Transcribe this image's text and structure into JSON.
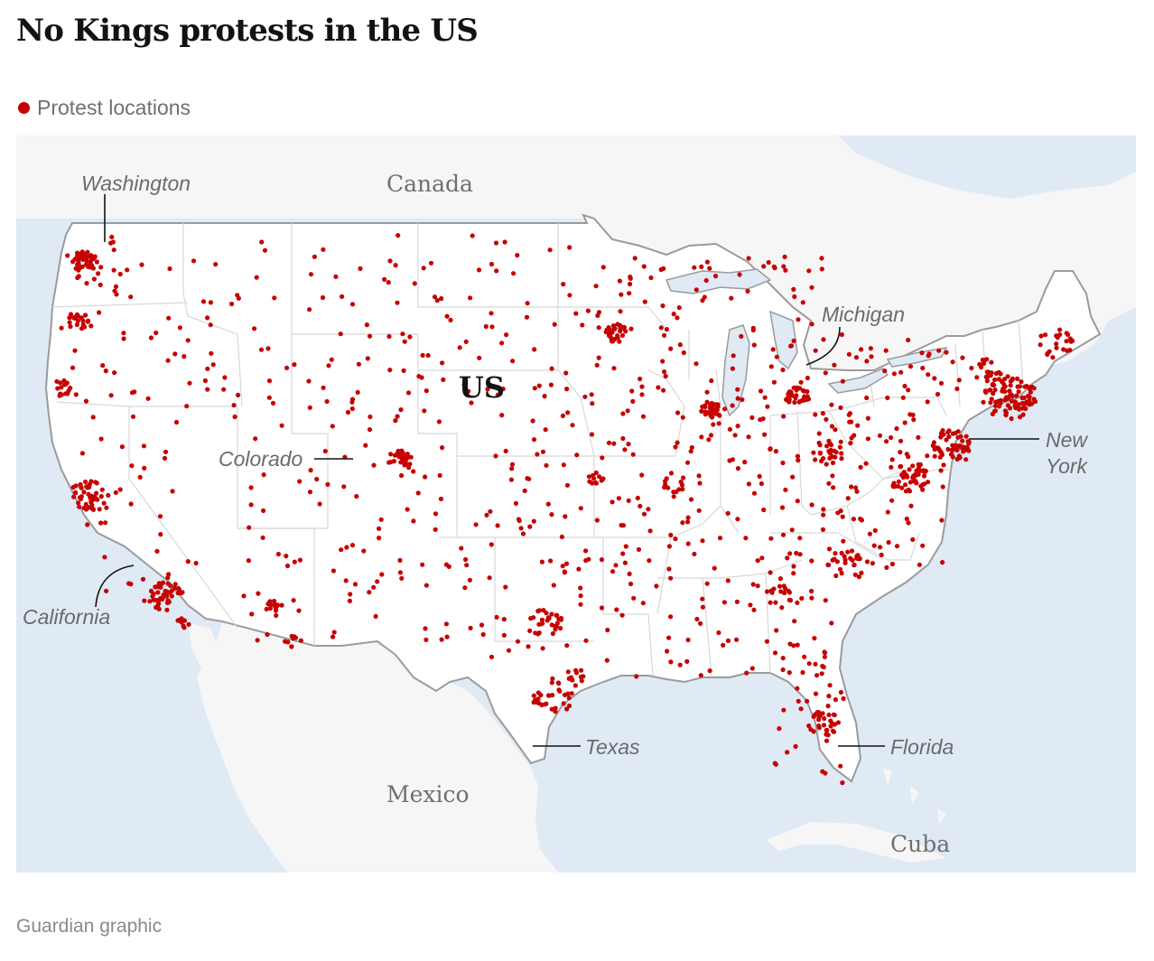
{
  "title": "No Kings protests in the US",
  "legend": {
    "label": "Protest locations",
    "color": "#c70000"
  },
  "map": {
    "countries": {
      "canada": "Canada",
      "us": "US",
      "mexico": "Mexico",
      "cuba": "Cuba"
    },
    "state_labels": {
      "washington": "Washington",
      "colorado": "Colorado",
      "michigan": "Michigan",
      "new_york_line1": "New",
      "new_york_line2": "York",
      "california": "California",
      "texas": "Texas",
      "florida": "Florida"
    },
    "colors": {
      "water": "#dfeaf4",
      "land": "#f6f6f6",
      "us_land": "#ffffff",
      "border": "#9b9b9b",
      "state_lines": "#d8d8d8",
      "dots": "#c70000"
    }
  },
  "source": "Guardian graphic"
}
